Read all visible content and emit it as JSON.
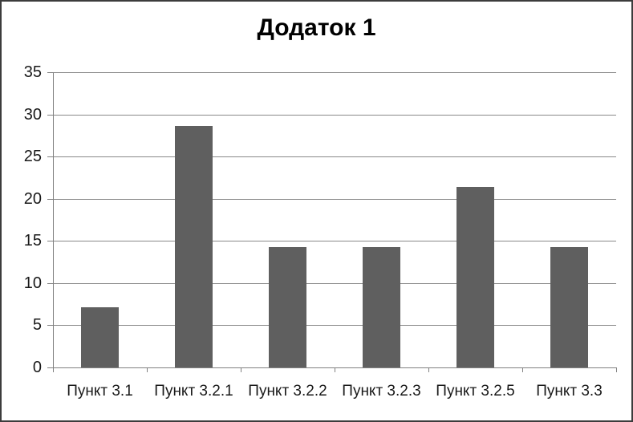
{
  "chart_data": {
    "type": "bar",
    "title": "Додаток 1",
    "categories": [
      "Пункт 3.1",
      "Пункт 3.2.1",
      "Пункт 3.2.2",
      "Пункт 3.2.3",
      "Пункт 3.2.5",
      "Пункт 3.3"
    ],
    "values": [
      7.1,
      28.6,
      14.3,
      14.3,
      21.4,
      14.3
    ],
    "xlabel": "",
    "ylabel": "",
    "ylim": [
      0,
      35
    ],
    "yticks": [
      0,
      5,
      10,
      15,
      20,
      25,
      30,
      35
    ],
    "grid": "horizontal",
    "legend_position": "none",
    "bar_color": "#5f5f5f",
    "gridline_color": "#898989",
    "axis_color": "#808080",
    "text_color": "#1a1a1a",
    "title_color": "#000000",
    "background_color": "#ffffff",
    "border_color": "#3c3c3c"
  }
}
